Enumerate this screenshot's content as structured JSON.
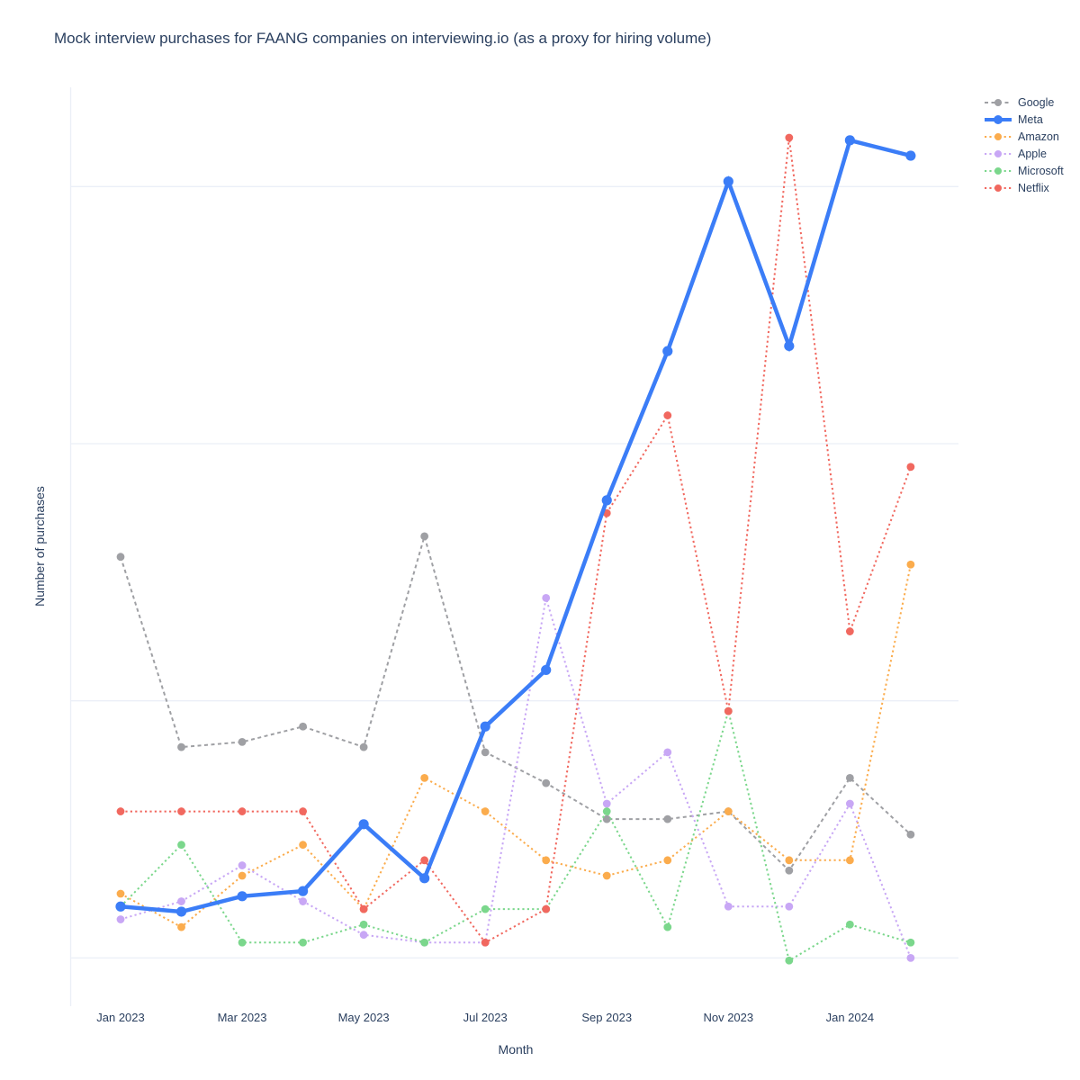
{
  "title": "Mock interview purchases for FAANG companies on interviewing.io (as a proxy for hiring volume)",
  "axes": {
    "x_label": "Month",
    "y_label": "Number of purchases",
    "x_tick_labels": [
      "Jan 2023",
      "Mar 2023",
      "May 2023",
      "Jul 2023",
      "Sep 2023",
      "Nov 2023",
      "Jan 2024"
    ],
    "y_tick_labels": []
  },
  "colors": {
    "text": "#2a3f5f",
    "gridline": "#ebeff7",
    "background": "#ffffff"
  },
  "chart_data": {
    "type": "line",
    "title": "Mock interview purchases for FAANG companies on interviewing.io (as a proxy for hiring volume)",
    "xlabel": "Month",
    "ylabel": "Number of purchases",
    "note": "y-axis is intentionally unlabeled in the source chart; values are estimated relative units where one gridline interval = 10 units",
    "x": [
      "Jan 2023",
      "Feb 2023",
      "Mar 2023",
      "Apr 2023",
      "May 2023",
      "Jun 2023",
      "Jul 2023",
      "Aug 2023",
      "Sep 2023",
      "Oct 2023",
      "Nov 2023",
      "Dec 2023",
      "Jan 2024",
      "Feb 2024"
    ],
    "ylim": [
      -1.9,
      33.9
    ],
    "grid": "horizontal gridlines at 0, 10, 20, 30 (unlabeled)",
    "legend_position": "top-right, vertical",
    "series": [
      {
        "name": "Google",
        "color": "#9fa0a4",
        "line_style": "dash",
        "line_width": 2,
        "values": [
          15.6,
          8.2,
          8.4,
          9.0,
          8.2,
          16.4,
          8.0,
          6.8,
          5.4,
          5.4,
          5.7,
          3.4,
          7.0,
          4.8
        ]
      },
      {
        "name": "Meta",
        "color": "#3b7df7",
        "line_style": "solid",
        "line_width": 4.5,
        "values": [
          2.0,
          1.8,
          2.4,
          2.6,
          5.2,
          3.1,
          9.0,
          11.2,
          17.8,
          23.6,
          30.2,
          23.8,
          31.8,
          31.2
        ]
      },
      {
        "name": "Amazon",
        "color": "#fbac4d",
        "line_style": "dot",
        "line_width": 2,
        "values": [
          2.5,
          1.2,
          3.2,
          4.4,
          1.9,
          7.0,
          5.7,
          3.8,
          3.2,
          3.8,
          5.7,
          3.8,
          3.8,
          15.3
        ]
      },
      {
        "name": "Apple",
        "color": "#c8a7f5",
        "line_style": "dot",
        "line_width": 2,
        "values": [
          1.5,
          2.2,
          3.6,
          2.2,
          0.9,
          0.6,
          0.6,
          14.0,
          6.0,
          8.0,
          2.0,
          2.0,
          6.0,
          0.0
        ]
      },
      {
        "name": "Microsoft",
        "color": "#7bd78c",
        "line_style": "dot",
        "line_width": 2,
        "values": [
          2.0,
          4.4,
          0.6,
          0.6,
          1.3,
          0.6,
          1.9,
          1.9,
          5.7,
          1.2,
          9.6,
          -0.1,
          1.3,
          0.6
        ]
      },
      {
        "name": "Netflix",
        "color": "#f1685f",
        "line_style": "dot",
        "line_width": 2,
        "values": [
          5.7,
          5.7,
          5.7,
          5.7,
          1.9,
          3.8,
          0.6,
          1.9,
          17.3,
          21.1,
          9.6,
          31.9,
          12.7,
          19.1
        ]
      }
    ]
  }
}
